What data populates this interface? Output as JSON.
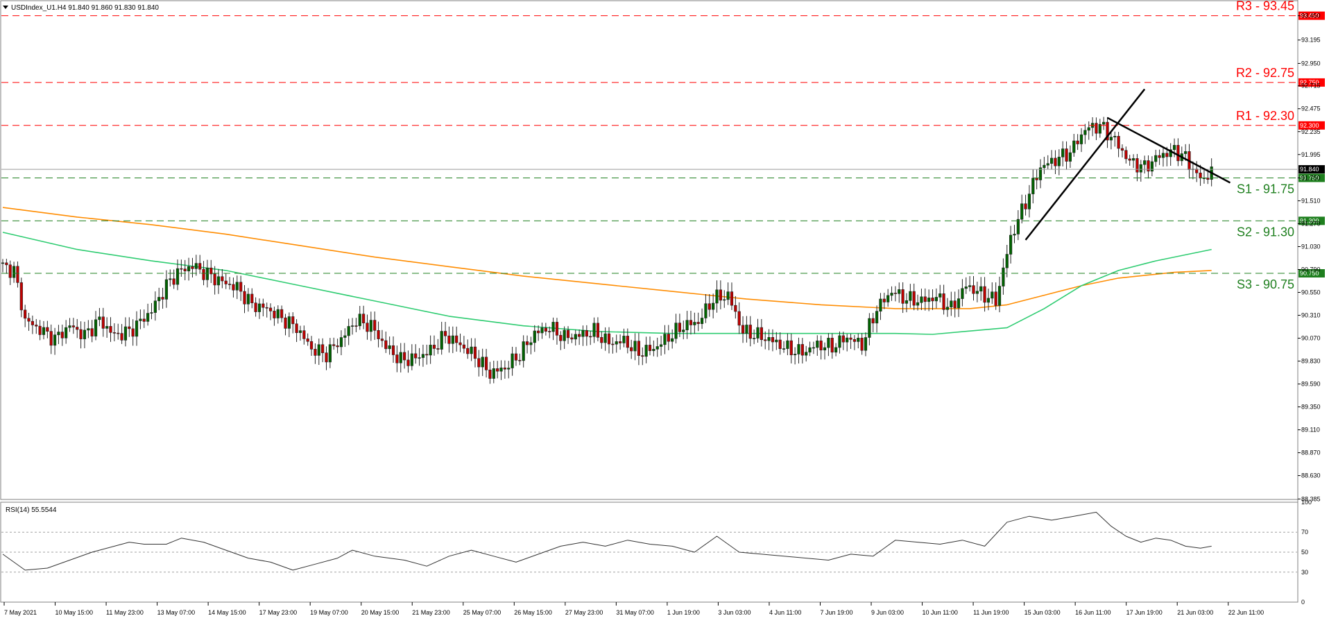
{
  "header": {
    "symbol_info": "USDIndex_U1.H4  91.840 91.860 91.830 91.840"
  },
  "rsi_panel": {
    "label": "RSI(14) 55.5544"
  },
  "colors": {
    "resistance": "#ff0000",
    "support": "#1e7f1e",
    "bull_candle": "#006400",
    "bear_candle": "#c00000",
    "ma_fast": "#2ecc71",
    "ma_slow": "#ff8c00",
    "trendline": "#000000",
    "current_price_tag": "#000000"
  },
  "chart_data": [
    {
      "type": "candlestick",
      "ylim": [
        88.38,
        93.6
      ],
      "y_ticks": [
        "93.450",
        "93.195",
        "92.950",
        "92.715",
        "92.475",
        "92.235",
        "91.995",
        "91.750",
        "91.510",
        "91.270",
        "91.030",
        "90.790",
        "90.550",
        "90.310",
        "90.070",
        "89.830",
        "89.590",
        "89.350",
        "89.110",
        "88.870",
        "88.630",
        "88.385"
      ],
      "x_ticks": [
        "7 May 2021",
        "10 May 15:00",
        "11 May 23:00",
        "13 May 07:00",
        "14 May 15:00",
        "17 May 23:00",
        "19 May 07:00",
        "20 May 15:00",
        "21 May 23:00",
        "25 May 07:00",
        "26 May 15:00",
        "27 May 23:00",
        "31 May 07:00",
        "1 Jun 19:00",
        "3 Jun 03:00",
        "4 Jun 11:00",
        "7 Jun 19:00",
        "9 Jun 03:00",
        "10 Jun 11:00",
        "11 Jun 19:00",
        "15 Jun 03:00",
        "16 Jun 11:00",
        "17 Jun 19:00",
        "21 Jun 03:00",
        "22 Jun 11:00"
      ],
      "levels": [
        {
          "name": "R3 - 93.45",
          "value": 93.45,
          "tag": "93.450",
          "kind": "resistance"
        },
        {
          "name": "R2 - 92.75",
          "value": 92.75,
          "tag": "92.750",
          "kind": "resistance"
        },
        {
          "name": "R1 - 92.30",
          "value": 92.3,
          "tag": "92.300",
          "kind": "resistance"
        },
        {
          "name": "S1 - 91.75",
          "value": 91.75,
          "tag": "91.750",
          "kind": "support"
        },
        {
          "name": "S2 - 91.30",
          "value": 91.3,
          "tag": "91.300",
          "kind": "support"
        },
        {
          "name": "S3 - 90.75",
          "value": 90.75,
          "tag": "90.750",
          "kind": "support"
        }
      ],
      "current_price": {
        "value": 91.84,
        "tag": "91.840"
      },
      "close_points": [
        [
          0,
          90.82
        ],
        [
          3,
          90.78
        ],
        [
          6,
          90.26
        ],
        [
          10,
          90.16
        ],
        [
          14,
          90.06
        ],
        [
          18,
          90.2
        ],
        [
          22,
          90.1
        ],
        [
          26,
          90.26
        ],
        [
          30,
          90.1
        ],
        [
          34,
          90.14
        ],
        [
          38,
          90.28
        ],
        [
          40,
          90.36
        ],
        [
          44,
          90.62
        ],
        [
          47,
          90.76
        ],
        [
          51,
          90.83
        ],
        [
          55,
          90.74
        ],
        [
          59,
          90.66
        ],
        [
          63,
          90.6
        ],
        [
          67,
          90.42
        ],
        [
          71,
          90.38
        ],
        [
          75,
          90.28
        ],
        [
          79,
          90.18
        ],
        [
          83,
          89.96
        ],
        [
          87,
          89.9
        ],
        [
          91,
          90.06
        ],
        [
          95,
          90.26
        ],
        [
          99,
          90.2
        ],
        [
          103,
          89.98
        ],
        [
          107,
          89.84
        ],
        [
          111,
          89.86
        ],
        [
          115,
          89.94
        ],
        [
          119,
          90.1
        ],
        [
          123,
          90.0
        ],
        [
          127,
          89.88
        ],
        [
          131,
          89.7
        ],
        [
          135,
          89.76
        ],
        [
          139,
          89.9
        ],
        [
          143,
          90.12
        ],
        [
          147,
          90.18
        ],
        [
          151,
          90.08
        ],
        [
          155,
          90.1
        ],
        [
          159,
          90.14
        ],
        [
          163,
          90.02
        ],
        [
          167,
          90.04
        ],
        [
          171,
          89.92
        ],
        [
          175,
          89.96
        ],
        [
          179,
          90.08
        ],
        [
          183,
          90.2
        ],
        [
          187,
          90.24
        ],
        [
          191,
          90.48
        ],
        [
          195,
          90.52
        ],
        [
          199,
          90.14
        ],
        [
          203,
          90.1
        ],
        [
          207,
          90.04
        ],
        [
          211,
          89.96
        ],
        [
          215,
          89.92
        ],
        [
          219,
          90.0
        ],
        [
          223,
          89.98
        ],
        [
          227,
          90.08
        ],
        [
          231,
          90.0
        ],
        [
          235,
          90.38
        ],
        [
          239,
          90.56
        ],
        [
          243,
          90.48
        ],
        [
          247,
          90.46
        ],
        [
          251,
          90.5
        ],
        [
          255,
          90.38
        ],
        [
          259,
          90.62
        ],
        [
          263,
          90.54
        ],
        [
          267,
          90.46
        ],
        [
          271,
          91.12
        ],
        [
          275,
          91.5
        ],
        [
          279,
          91.86
        ],
        [
          283,
          91.94
        ],
        [
          287,
          92.02
        ],
        [
          291,
          92.26
        ],
        [
          295,
          92.3
        ],
        [
          299,
          92.14
        ],
        [
          303,
          91.92
        ],
        [
          307,
          91.86
        ],
        [
          311,
          91.98
        ],
        [
          315,
          92.04
        ],
        [
          318,
          91.96
        ],
        [
          321,
          91.78
        ],
        [
          323,
          91.73
        ],
        [
          325,
          91.84
        ]
      ],
      "ma_fast_points": [
        [
          0,
          91.18
        ],
        [
          20,
          91.0
        ],
        [
          40,
          90.88
        ],
        [
          60,
          90.78
        ],
        [
          80,
          90.62
        ],
        [
          100,
          90.46
        ],
        [
          120,
          90.3
        ],
        [
          140,
          90.2
        ],
        [
          160,
          90.14
        ],
        [
          180,
          90.12
        ],
        [
          200,
          90.12
        ],
        [
          220,
          90.12
        ],
        [
          240,
          90.12
        ],
        [
          250,
          90.11
        ],
        [
          270,
          90.18
        ],
        [
          280,
          90.38
        ],
        [
          290,
          90.62
        ],
        [
          300,
          90.78
        ],
        [
          310,
          90.88
        ],
        [
          325,
          91.0
        ]
      ],
      "ma_slow_points": [
        [
          0,
          91.44
        ],
        [
          20,
          91.34
        ],
        [
          40,
          91.26
        ],
        [
          60,
          91.16
        ],
        [
          80,
          91.04
        ],
        [
          100,
          90.92
        ],
        [
          120,
          90.82
        ],
        [
          140,
          90.72
        ],
        [
          160,
          90.64
        ],
        [
          180,
          90.56
        ],
        [
          200,
          90.48
        ],
        [
          220,
          90.42
        ],
        [
          240,
          90.38
        ],
        [
          260,
          90.38
        ],
        [
          270,
          90.42
        ],
        [
          280,
          90.52
        ],
        [
          290,
          90.62
        ],
        [
          300,
          90.7
        ],
        [
          315,
          90.76
        ],
        [
          325,
          90.78
        ]
      ],
      "trendlines": [
        {
          "from": [
            275,
            91.1
          ],
          "to": [
            307,
            92.68
          ]
        },
        {
          "from": [
            297,
            92.38
          ],
          "to": [
            330,
            91.7
          ]
        }
      ]
    },
    {
      "type": "line",
      "name": "RSI(14) 55.5544",
      "ylim": [
        0,
        100
      ],
      "y_ticks": [
        "100",
        "70",
        "50",
        "30",
        "0"
      ],
      "levels": [
        70,
        50,
        30
      ],
      "points": [
        [
          0,
          48
        ],
        [
          6,
          32
        ],
        [
          12,
          34
        ],
        [
          18,
          42
        ],
        [
          24,
          50
        ],
        [
          30,
          56
        ],
        [
          34,
          60
        ],
        [
          38,
          58
        ],
        [
          44,
          58
        ],
        [
          48,
          64
        ],
        [
          54,
          60
        ],
        [
          60,
          52
        ],
        [
          66,
          44
        ],
        [
          72,
          40
        ],
        [
          78,
          32
        ],
        [
          84,
          38
        ],
        [
          90,
          44
        ],
        [
          94,
          52
        ],
        [
          100,
          46
        ],
        [
          108,
          42
        ],
        [
          114,
          36
        ],
        [
          120,
          46
        ],
        [
          126,
          52
        ],
        [
          132,
          46
        ],
        [
          138,
          40
        ],
        [
          144,
          48
        ],
        [
          150,
          56
        ],
        [
          156,
          60
        ],
        [
          162,
          56
        ],
        [
          168,
          62
        ],
        [
          174,
          58
        ],
        [
          180,
          56
        ],
        [
          186,
          50
        ],
        [
          192,
          66
        ],
        [
          198,
          50
        ],
        [
          204,
          48
        ],
        [
          210,
          46
        ],
        [
          216,
          44
        ],
        [
          222,
          42
        ],
        [
          228,
          48
        ],
        [
          234,
          46
        ],
        [
          240,
          62
        ],
        [
          246,
          60
        ],
        [
          252,
          58
        ],
        [
          258,
          62
        ],
        [
          264,
          56
        ],
        [
          270,
          80
        ],
        [
          276,
          86
        ],
        [
          282,
          82
        ],
        [
          288,
          86
        ],
        [
          294,
          90
        ],
        [
          298,
          76
        ],
        [
          302,
          66
        ],
        [
          306,
          60
        ],
        [
          310,
          64
        ],
        [
          314,
          62
        ],
        [
          318,
          56
        ],
        [
          322,
          54
        ],
        [
          325,
          56
        ]
      ]
    }
  ]
}
